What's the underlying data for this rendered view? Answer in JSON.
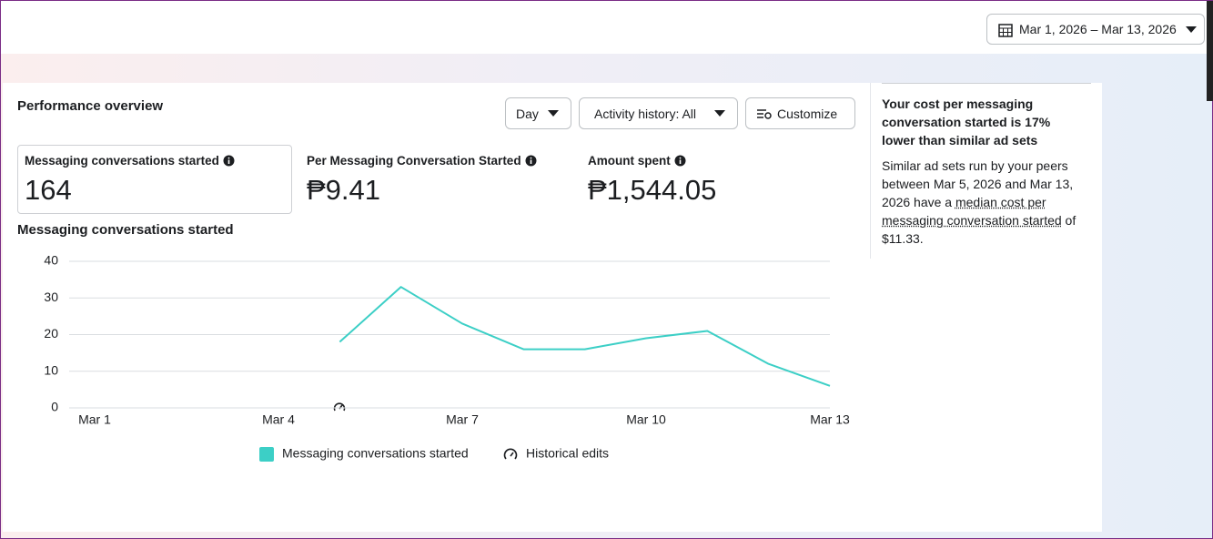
{
  "date_range": "Mar 1, 2026 – Mar 13, 2026",
  "performance": {
    "title": "Performance overview",
    "filters": [
      "Day",
      "Activity history: All"
    ],
    "customize": "Customize",
    "metrics": [
      {
        "label": "Messaging conversations started",
        "value": "164"
      },
      {
        "label": "Per Messaging Conversation Started",
        "value": "₱9.41"
      },
      {
        "label": "Amount spent",
        "value": "₱1,544.05"
      }
    ]
  },
  "chart_data": {
    "type": "line",
    "title": "Messaging conversations started",
    "categories": [
      "Mar 1",
      null,
      null,
      "Mar 4",
      null,
      null,
      "Mar 7",
      null,
      null,
      "Mar 10",
      null,
      null,
      "Mar 13"
    ],
    "series": [
      {
        "name": "Messaging conversations started",
        "color": "#3ccfc6",
        "values": [
          null,
          null,
          null,
          null,
          18,
          33,
          23,
          16,
          16,
          19,
          21,
          12,
          6
        ]
      }
    ],
    "ylim": [
      0,
      40
    ],
    "yticks": [
      0,
      10,
      20,
      30,
      40
    ],
    "grid": true,
    "legend_extra": "Historical edits"
  },
  "insight": {
    "title": "Your cost per messaging conversation started is 17% lower than similar ad sets",
    "body_start": "Similar ad sets run by your peers between Mar 5, 2026 and Mar 13, 2026 have a ",
    "body_link": "median cost per messaging conversation started",
    "body_end": " of $11.33."
  }
}
